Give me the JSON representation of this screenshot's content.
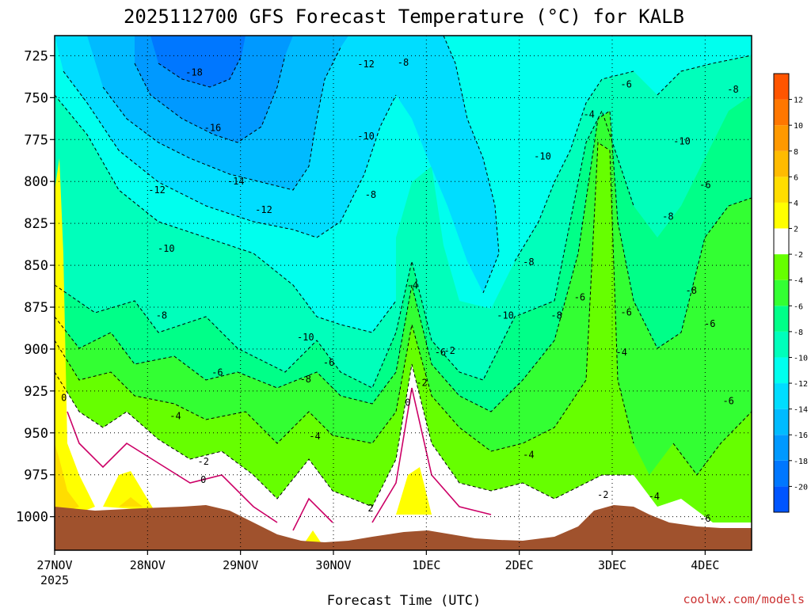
{
  "chart_data": {
    "type": "heatmap",
    "title": "2025112700 GFS Forecast Temperature (°C) for KALB",
    "xlabel": "Forecast Time (UTC)",
    "ylabel": "",
    "x_ticks": [
      "27NOV",
      "28NOV",
      "29NOV",
      "30NOV",
      "1DEC",
      "2DEC",
      "3DEC",
      "4DEC"
    ],
    "x_sub_label": "2025",
    "x_range_days": [
      0,
      7.5
    ],
    "y_ticks": [
      725,
      750,
      775,
      800,
      825,
      850,
      875,
      900,
      925,
      950,
      975,
      1000
    ],
    "y_range_hpa": [
      713,
      1020
    ],
    "colorbar": {
      "levels": [
        -22,
        -20,
        -18,
        -16,
        -14,
        -12,
        -10,
        -8,
        -6,
        -4,
        -2,
        2,
        4,
        6,
        8,
        10,
        12,
        14
      ],
      "tick_labels": [
        "-20",
        "-18",
        "-16",
        "-14",
        "-12",
        "-10",
        "-8",
        "-6",
        "-4",
        "-2",
        "2",
        "4",
        "6",
        "8",
        "10",
        "12"
      ],
      "colors": [
        "#0055ff",
        "#0077ff",
        "#0099ff",
        "#00bbff",
        "#00ddff",
        "#00ffee",
        "#00ffbb",
        "#00ff88",
        "#33ff33",
        "#66ff00",
        "#ffffff",
        "#ffff00",
        "#ffdd00",
        "#ffbb00",
        "#ff9900",
        "#ff7700",
        "#ff5500"
      ],
      "terrain_color": "#a0522d"
    },
    "contour_labels": [
      {
        "label": "-18",
        "day": 1.5,
        "p": 735
      },
      {
        "label": "-16",
        "day": 1.7,
        "p": 768
      },
      {
        "label": "-14",
        "day": 1.95,
        "p": 800
      },
      {
        "label": "-12",
        "day": 1.1,
        "p": 805
      },
      {
        "label": "-12",
        "day": 2.25,
        "p": 817
      },
      {
        "label": "-12",
        "day": 3.35,
        "p": 730
      },
      {
        "label": "-10",
        "day": 1.2,
        "p": 840
      },
      {
        "label": "-10",
        "day": 3.35,
        "p": 773
      },
      {
        "label": "-10",
        "day": 2.7,
        "p": 893
      },
      {
        "label": "-10",
        "day": 4.85,
        "p": 880
      },
      {
        "label": "-10",
        "day": 5.25,
        "p": 785
      },
      {
        "label": "-10",
        "day": 6.75,
        "p": 776
      },
      {
        "label": "-8",
        "day": 1.15,
        "p": 880
      },
      {
        "label": "-8",
        "day": 3.75,
        "p": 729
      },
      {
        "label": "-8",
        "day": 3.4,
        "p": 808
      },
      {
        "label": "-8",
        "day": 2.7,
        "p": 918
      },
      {
        "label": "-8",
        "day": 5.1,
        "p": 848
      },
      {
        "label": "-8",
        "day": 5.4,
        "p": 880
      },
      {
        "label": "-8",
        "day": 6.6,
        "p": 821
      },
      {
        "label": "-8",
        "day": 6.85,
        "p": 865
      },
      {
        "label": "-8",
        "day": 7.3,
        "p": 745
      },
      {
        "label": "-6",
        "day": 1.75,
        "p": 914
      },
      {
        "label": "-6",
        "day": 2.95,
        "p": 908
      },
      {
        "label": "-6",
        "day": 4.15,
        "p": 902
      },
      {
        "label": "-6",
        "day": 5.65,
        "p": 869
      },
      {
        "label": "-6",
        "day": 6.15,
        "p": 878
      },
      {
        "label": "-6",
        "day": 6.15,
        "p": 742
      },
      {
        "label": "-6",
        "day": 7.05,
        "p": 885
      },
      {
        "label": "-6",
        "day": 7.0,
        "p": 802
      },
      {
        "label": "-6",
        "day": 7.25,
        "p": 931
      },
      {
        "label": "-6",
        "day": 7.0,
        "p": 1001
      },
      {
        "label": "-4",
        "day": 1.3,
        "p": 940
      },
      {
        "label": "-4",
        "day": 2.8,
        "p": 952
      },
      {
        "label": "-4",
        "day": 3.85,
        "p": 862
      },
      {
        "label": "-4",
        "day": 5.75,
        "p": 760
      },
      {
        "label": "-4",
        "day": 5.1,
        "p": 963
      },
      {
        "label": "-4",
        "day": 6.1,
        "p": 902
      },
      {
        "label": "-4",
        "day": 6.45,
        "p": 988
      },
      {
        "label": "-2",
        "day": 1.6,
        "p": 967
      },
      {
        "label": "-2",
        "day": 3.95,
        "p": 920
      },
      {
        "label": "-2",
        "day": 4.25,
        "p": 901
      },
      {
        "label": "-2",
        "day": 5.9,
        "p": 987
      },
      {
        "label": "0",
        "day": 1.6,
        "p": 978
      },
      {
        "label": "0",
        "day": 0.1,
        "p": 929
      },
      {
        "label": "0",
        "day": 3.8,
        "p": 932
      },
      {
        "label": "2",
        "day": 3.4,
        "p": 995
      }
    ]
  },
  "credit": "coolwx.com/models"
}
